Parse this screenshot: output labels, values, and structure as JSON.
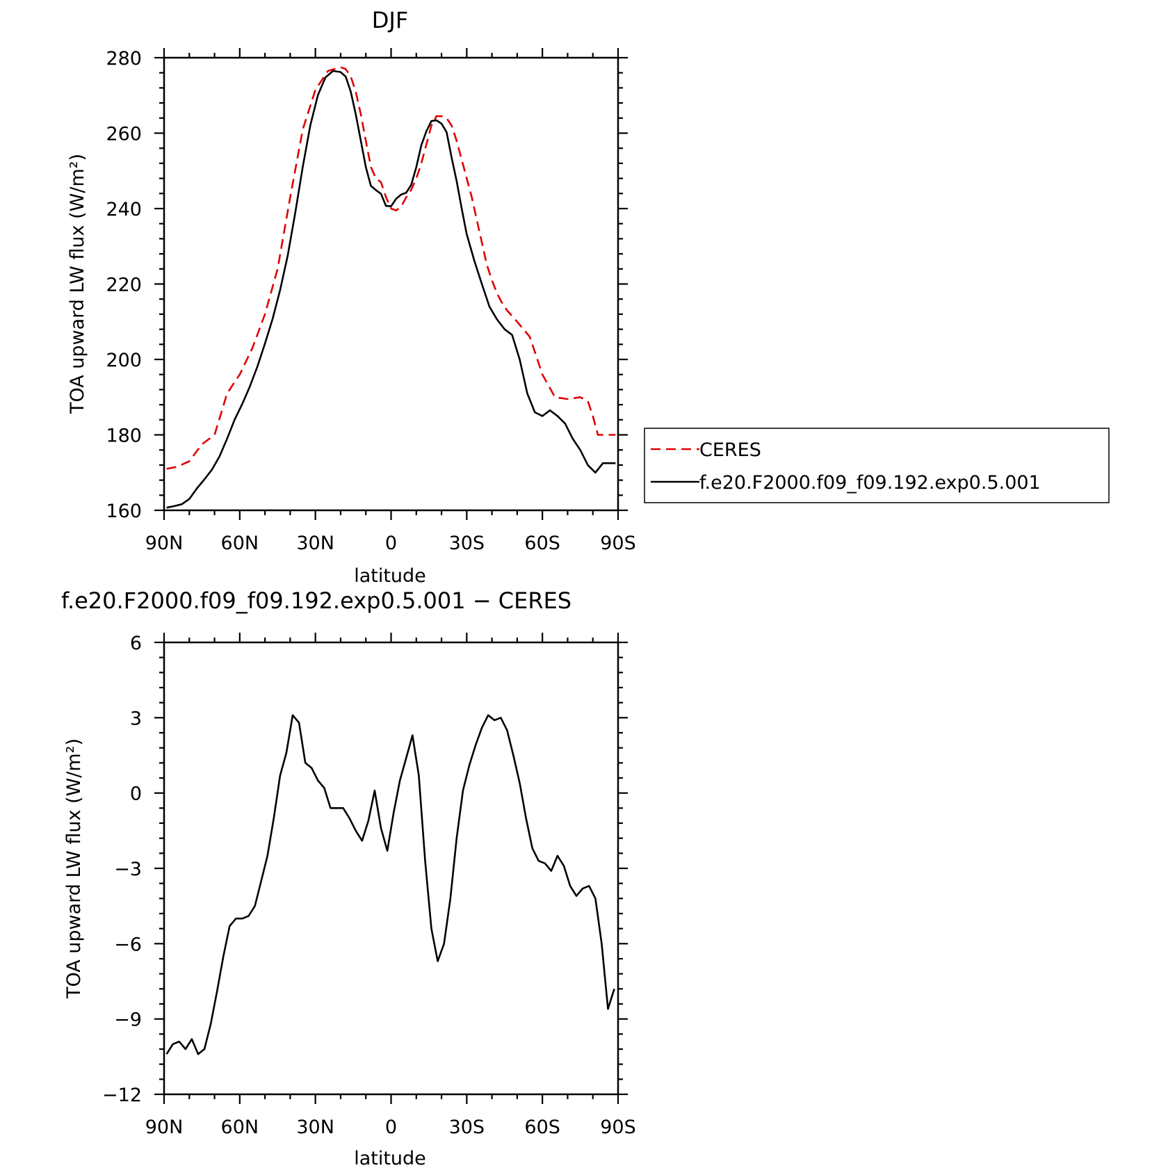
{
  "chart_data": [
    {
      "type": "line",
      "title": "DJF",
      "xlabel": "latitude",
      "ylabel": "TOA upward LW flux (W/m²)",
      "xlim": [
        90,
        -90
      ],
      "ylim": [
        160,
        280
      ],
      "xticks": [
        90,
        60,
        30,
        0,
        -30,
        -60,
        -90
      ],
      "xtick_labels": [
        "90N",
        "60N",
        "30N",
        "0",
        "30S",
        "60S",
        "90S"
      ],
      "yticks": [
        160,
        180,
        200,
        220,
        240,
        260,
        280
      ],
      "ytick_labels": [
        "160",
        "180",
        "200",
        "220",
        "240",
        "260",
        "280"
      ],
      "grid": false,
      "legend_position": "outside-right",
      "series": [
        {
          "name": "CERES",
          "color": "#e00000",
          "style": "dashed",
          "x": [
            89,
            85,
            80,
            75,
            70,
            65,
            60,
            55,
            50,
            45,
            40,
            35,
            30,
            25,
            20,
            18,
            16,
            14,
            12,
            10,
            8,
            6,
            4,
            2,
            0,
            -2,
            -4,
            -6,
            -8,
            -10,
            -12,
            -14,
            -16,
            -18,
            -20,
            -22,
            -24,
            -26,
            -28,
            -30,
            -32,
            -34,
            -36,
            -38,
            -40,
            -42,
            -44,
            -46,
            -48,
            -50,
            -55,
            -60,
            -65,
            -70,
            -75,
            -78,
            -80,
            -82,
            -84,
            -86,
            -89
          ],
          "values": [
            171,
            171.5,
            173,
            177.5,
            180,
            191,
            196,
            203,
            212,
            224,
            243,
            261,
            271.5,
            276.5,
            277.5,
            277,
            275,
            271,
            265,
            258,
            251,
            248,
            247,
            243,
            240,
            239.5,
            240.5,
            243,
            245,
            248,
            252,
            257,
            262,
            264.5,
            264.5,
            264,
            262,
            258,
            253,
            248,
            243,
            237,
            231,
            225,
            221,
            217.5,
            215,
            213,
            211.5,
            210,
            206,
            196,
            190,
            189.5,
            190,
            189,
            185,
            180,
            180,
            180,
            180
          ]
        },
        {
          "name": "f.e20.F2000.f09_f09.192.exp0.5.001",
          "color": "#000000",
          "style": "solid",
          "x": [
            89,
            86,
            83,
            80,
            77,
            74,
            71,
            68,
            65,
            62,
            59,
            56,
            53,
            50,
            47,
            44,
            41,
            38,
            35,
            32,
            29,
            26,
            23,
            20,
            18,
            16,
            14,
            12,
            10,
            8,
            6,
            4,
            2,
            0,
            -2,
            -4,
            -6,
            -8,
            -10,
            -12,
            -14,
            -16,
            -18,
            -20,
            -22,
            -24,
            -26,
            -28,
            -30,
            -33,
            -36,
            -39,
            -42,
            -45,
            -48,
            -51,
            -54,
            -57,
            -60,
            -63,
            -66,
            -69,
            -72,
            -75,
            -78,
            -81,
            -84,
            -86,
            -89
          ],
          "values": [
            160.7,
            161.1,
            161.6,
            163,
            165.8,
            168.2,
            170.8,
            174.3,
            179,
            184.1,
            188.2,
            192.8,
            198.1,
            204.2,
            210.7,
            218.4,
            227.5,
            238.8,
            251.1,
            262.1,
            270.1,
            274.8,
            276.5,
            276.2,
            275,
            271,
            265,
            258,
            251,
            246,
            244.9,
            243.9,
            240.7,
            240.6,
            242.6,
            243.7,
            244.2,
            246.3,
            251,
            256.8,
            260.5,
            263.2,
            263.4,
            262.5,
            260.3,
            253.5,
            247.3,
            240,
            233.2,
            226.2,
            220,
            214,
            210.6,
            208,
            206.5,
            200,
            191,
            186,
            185,
            186.5,
            185,
            183,
            179,
            176,
            172,
            170,
            172.5,
            172.5,
            172.5
          ]
        }
      ]
    },
    {
      "type": "line",
      "title": "f.e20.F2000.f09_f09.192.exp0.5.001 − CERES",
      "xlabel": "latitude",
      "ylabel": "TOA upward LW flux (W/m²)",
      "xlim": [
        90,
        -90
      ],
      "ylim": [
        -12,
        6
      ],
      "xticks": [
        90,
        60,
        30,
        0,
        -30,
        -60,
        -90
      ],
      "xtick_labels": [
        "90N",
        "60N",
        "30N",
        "0",
        "30S",
        "60S",
        "90S"
      ],
      "yticks": [
        -12,
        -9,
        -6,
        -3,
        0,
        3,
        6
      ],
      "ytick_labels": [
        "−12",
        "−9",
        "−6",
        "−3",
        "0",
        "3",
        "6"
      ],
      "grid": false,
      "series": [
        {
          "color": "#000000",
          "style": "solid",
          "x": [
            89,
            86.5,
            84,
            81.5,
            79,
            76.5,
            74,
            71.5,
            69,
            66.5,
            64,
            61.5,
            59,
            56.5,
            54,
            51.5,
            49,
            46.5,
            44,
            41.5,
            39,
            36.5,
            34,
            31.5,
            29,
            26.5,
            24,
            21.5,
            19,
            16.5,
            14,
            11.5,
            9,
            6.5,
            4,
            1.5,
            -1,
            -3.5,
            -6,
            -8.5,
            -11,
            -13.5,
            -16,
            -18.5,
            -21,
            -23.5,
            -26,
            -28.5,
            -31,
            -33.5,
            -36,
            -38.5,
            -41,
            -43.5,
            -46,
            -48.5,
            -51,
            -53.5,
            -56,
            -58.5,
            -61,
            -63.5,
            -66,
            -68.5,
            -71,
            -73.5,
            -76,
            -78.5,
            -81,
            -83.5,
            -86,
            -88.5
          ],
          "values": [
            -10.4,
            -10,
            -9.9,
            -10.2,
            -9.8,
            -10.4,
            -10.2,
            -9.2,
            -7.9,
            -6.5,
            -5.3,
            -5,
            -5,
            -4.9,
            -4.5,
            -3.5,
            -2.5,
            -1,
            0.7,
            1.6,
            3.1,
            2.8,
            1.2,
            1,
            0.5,
            0.2,
            -0.6,
            -0.6,
            -0.6,
            -1,
            -1.5,
            -1.9,
            -1.1,
            0.1,
            -1.4,
            -2.3,
            -0.8,
            0.5,
            1.4,
            2.3,
            0.7,
            -2.7,
            -5.4,
            -6.7,
            -6,
            -4.2,
            -1.8,
            0.1,
            1.1,
            1.9,
            2.6,
            3.1,
            2.9,
            3,
            2.5,
            1.5,
            0.4,
            -1,
            -2.2,
            -2.7,
            -2.8,
            -3.1,
            -2.5,
            -2.9,
            -3.7,
            -4.1,
            -3.8,
            -3.7,
            -4.2,
            -6,
            -8.6,
            -7.8
          ]
        }
      ]
    }
  ]
}
